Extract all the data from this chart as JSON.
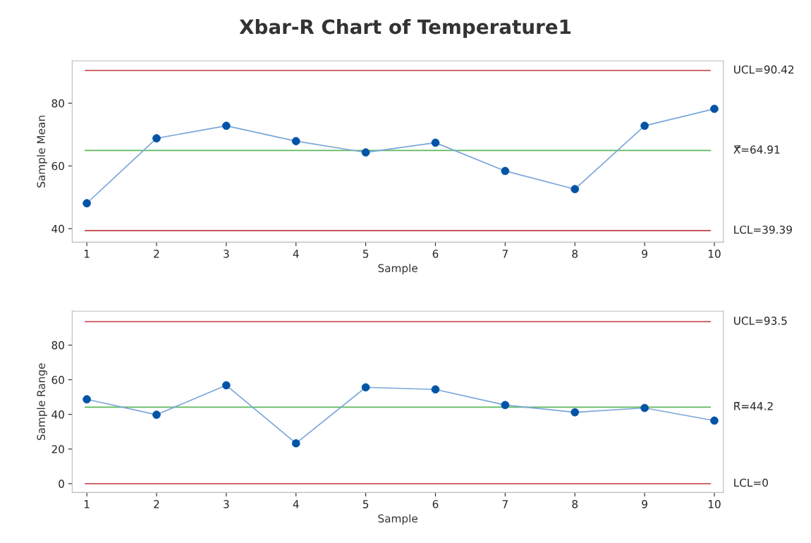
{
  "chart_data": [
    {
      "type": "line",
      "title": "Xbar-R Chart of Temperature1",
      "xlabel": "Sample",
      "ylabel": "Sample Mean",
      "x": [
        1,
        2,
        3,
        4,
        5,
        6,
        7,
        8,
        9,
        10
      ],
      "series": [
        {
          "color": "#0054a6",
          "values": [
            48.1,
            68.8,
            72.8,
            67.9,
            64.3,
            67.4,
            58.4,
            52.6,
            72.8,
            78.2
          ]
        }
      ],
      "xlim": [
        0.79,
        10.13
      ],
      "xticks": [
        1,
        2,
        3,
        4,
        5,
        6,
        7,
        8,
        9,
        10
      ],
      "ylim": [
        35.7,
        93.5
      ],
      "yticks": [
        40,
        60,
        80
      ],
      "ref_lines": [
        {
          "axis": "y",
          "value": 90.42,
          "label": "UCL=90.42",
          "color": "#c9565a"
        },
        {
          "axis": "y",
          "value": 64.91,
          "label": "X̿=64.91",
          "color": "#5cb85c"
        },
        {
          "axis": "y",
          "value": 39.39,
          "label": "LCL=39.39",
          "color": "#c9565a"
        }
      ],
      "marker": "circle",
      "grid": false
    },
    {
      "type": "line",
      "xlabel": "Sample",
      "ylabel": "Sample Range",
      "x": [
        1,
        2,
        3,
        4,
        5,
        6,
        7,
        8,
        9,
        10
      ],
      "series": [
        {
          "color": "#0054a6",
          "values": [
            48.7,
            39.8,
            56.8,
            23.3,
            55.6,
            54.4,
            45.4,
            41.2,
            43.7,
            36.4
          ]
        }
      ],
      "xlim": [
        0.79,
        10.13
      ],
      "xticks": [
        1,
        2,
        3,
        4,
        5,
        6,
        7,
        8,
        9,
        10
      ],
      "ylim": [
        -5.1,
        99.6
      ],
      "yticks": [
        0,
        20,
        40,
        60,
        80
      ],
      "ref_lines": [
        {
          "axis": "y",
          "value": 93.5,
          "label": "UCL=93.5",
          "color": "#c9565a"
        },
        {
          "axis": "y",
          "value": 44.2,
          "label": "R̄=44.2",
          "color": "#5cb85c"
        },
        {
          "axis": "y",
          "value": 0,
          "label": "LCL=0",
          "color": "#c9565a"
        }
      ],
      "marker": "circle",
      "grid": false
    }
  ]
}
